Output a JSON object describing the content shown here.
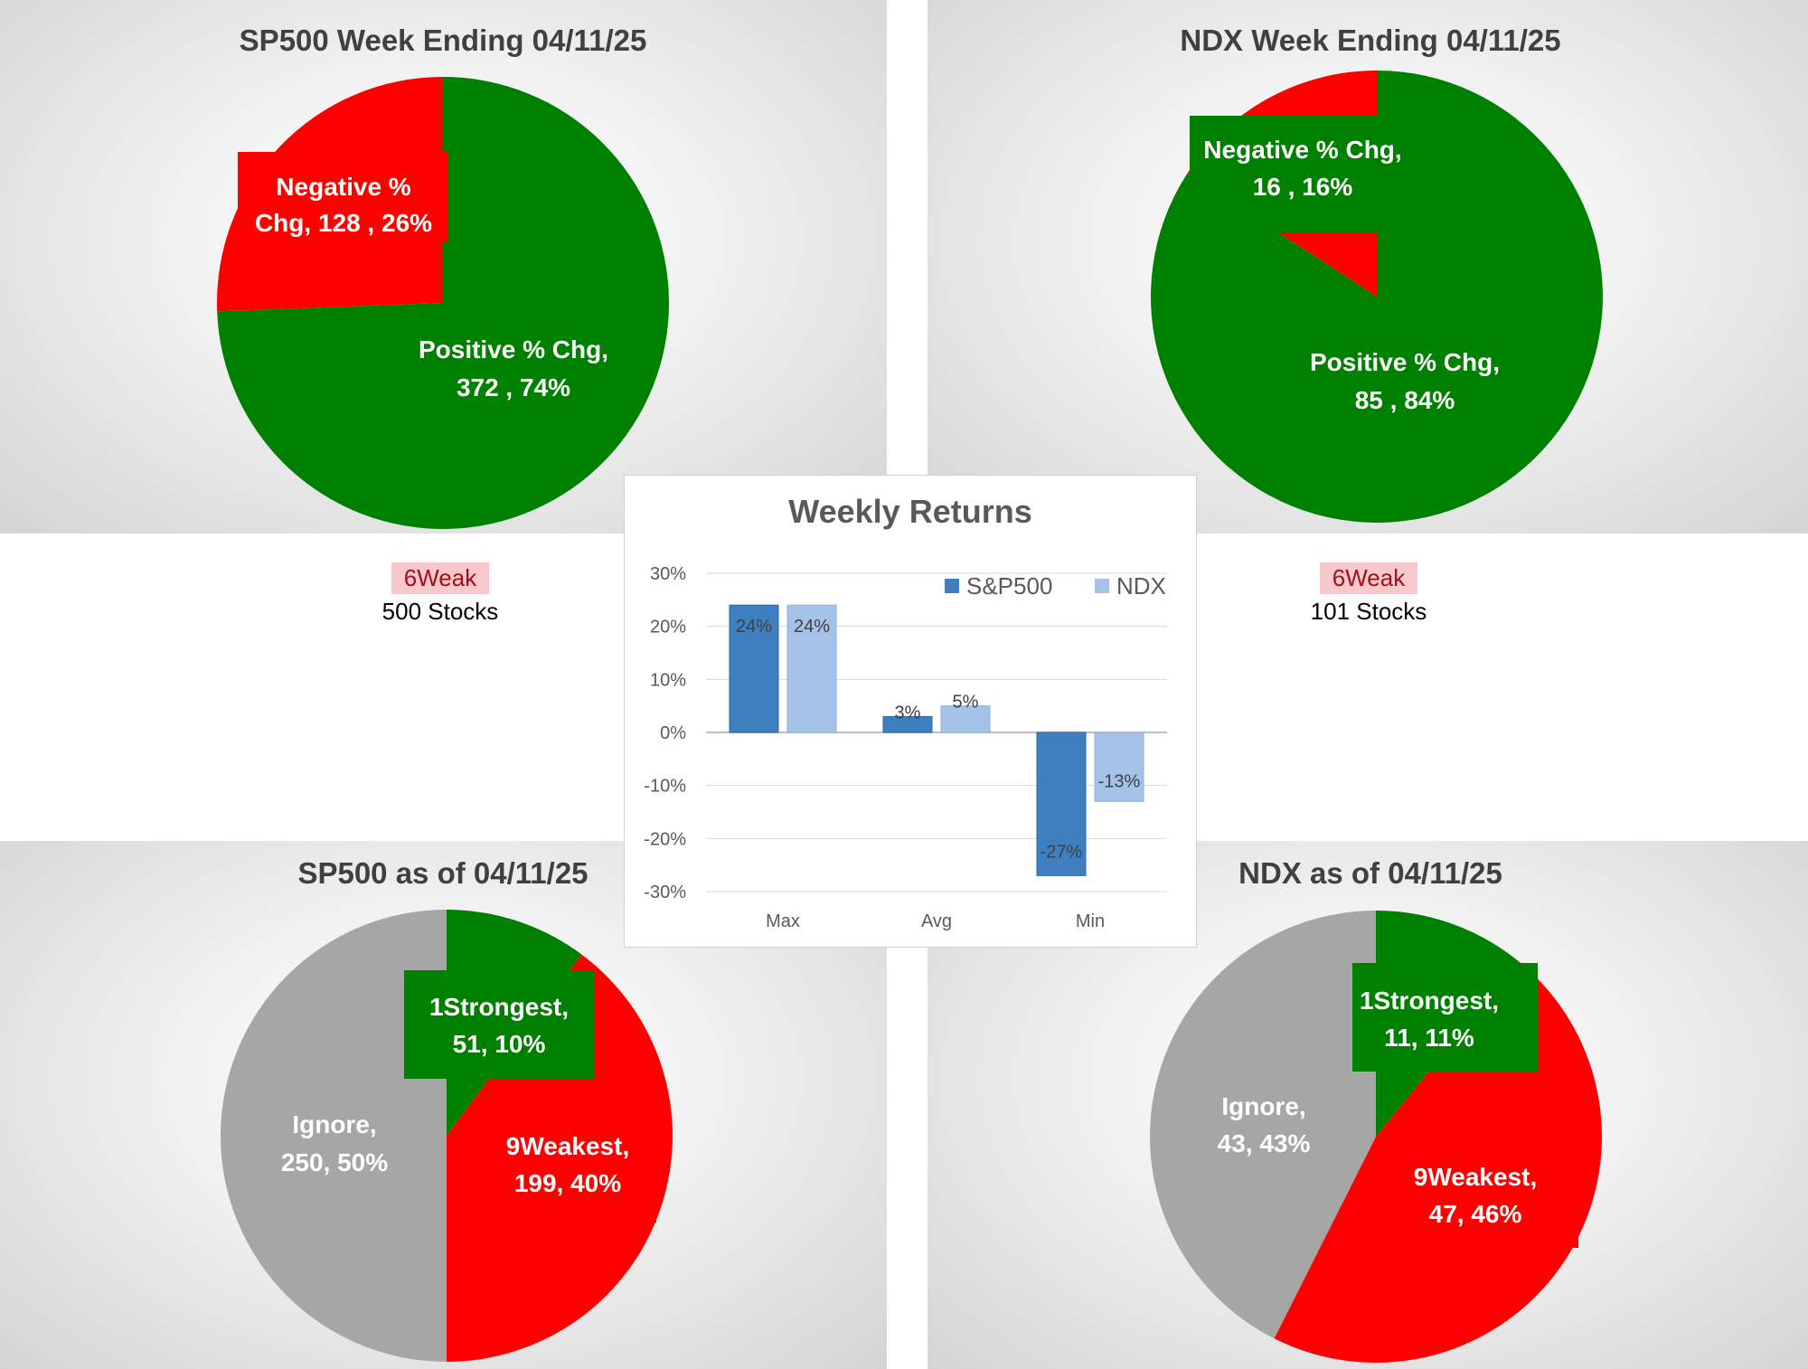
{
  "colors": {
    "green": "#008000",
    "red": "#ff0000",
    "gray": "#a6a6a6",
    "sp500_bar": "#3f7fbf",
    "ndx_bar": "#a4c2e8",
    "badge_bg": "#f8c8cc",
    "badge_fg": "#a0101a"
  },
  "sp500_info": {
    "badge": "6Weak",
    "count": "500 Stocks"
  },
  "ndx_info": {
    "badge": "6Weak",
    "count": "101 Stocks"
  },
  "chart_data": [
    {
      "type": "pie",
      "title": "SP500 Week Ending 04/11/25",
      "slices": [
        {
          "name": "Negative % Chg",
          "value": 128,
          "percent": 26,
          "color": "red",
          "label": [
            "Negative %",
            "Chg,  128 , 26%"
          ]
        },
        {
          "name": "Positive % Chg",
          "value": 372,
          "percent": 74,
          "color": "green",
          "label": [
            "Positive % Chg,",
            "372 , 74%"
          ]
        }
      ]
    },
    {
      "type": "pie",
      "title": "NDX Week Ending 04/11/25",
      "slices": [
        {
          "name": "Negative % Chg",
          "value": 16,
          "percent": 16,
          "color": "red",
          "label": [
            "Negative % Chg,",
            "16 , 16%"
          ]
        },
        {
          "name": "Positive % Chg",
          "value": 85,
          "percent": 84,
          "color": "green",
          "label": [
            "Positive % Chg,",
            "85 , 84%"
          ]
        }
      ]
    },
    {
      "type": "pie",
      "title": "SP500 as of 04/11/25",
      "slices": [
        {
          "name": "1Strongest",
          "value": 51,
          "percent": 10,
          "color": "green",
          "label": [
            "1Strongest,",
            "51, 10%"
          ]
        },
        {
          "name": "9Weakest",
          "value": 199,
          "percent": 40,
          "color": "red",
          "label": [
            "9Weakest,",
            "199, 40%"
          ]
        },
        {
          "name": "Ignore",
          "value": 250,
          "percent": 50,
          "color": "gray",
          "label": [
            "Ignore,",
            "250, 50%"
          ]
        }
      ]
    },
    {
      "type": "pie",
      "title": "NDX as of 04/11/25",
      "slices": [
        {
          "name": "1Strongest",
          "value": 11,
          "percent": 11,
          "color": "green",
          "label": [
            "1Strongest,",
            "11, 11%"
          ]
        },
        {
          "name": "9Weakest",
          "value": 47,
          "percent": 46,
          "color": "red",
          "label": [
            "9Weakest,",
            "47, 46%"
          ]
        },
        {
          "name": "Ignore",
          "value": 43,
          "percent": 43,
          "color": "gray",
          "label": [
            "Ignore,",
            "43, 43%"
          ]
        }
      ]
    },
    {
      "type": "bar",
      "title": "Weekly Returns",
      "categories": [
        "Max",
        "Avg",
        "Min"
      ],
      "series": [
        {
          "name": "S&P500",
          "values": [
            24,
            3,
            -27
          ],
          "labels": [
            "24%",
            "3%",
            "-27%"
          ]
        },
        {
          "name": "NDX",
          "values": [
            24,
            5,
            -13
          ],
          "labels": [
            "24%",
            "5%",
            "-13%"
          ]
        }
      ],
      "ylim": [
        -30,
        30
      ],
      "yticks": [
        "30%",
        "20%",
        "10%",
        "0%",
        "-10%",
        "-20%",
        "-30%"
      ],
      "ytick_values": [
        30,
        20,
        10,
        0,
        -10,
        -20,
        -30
      ],
      "legend": "top-right"
    }
  ]
}
